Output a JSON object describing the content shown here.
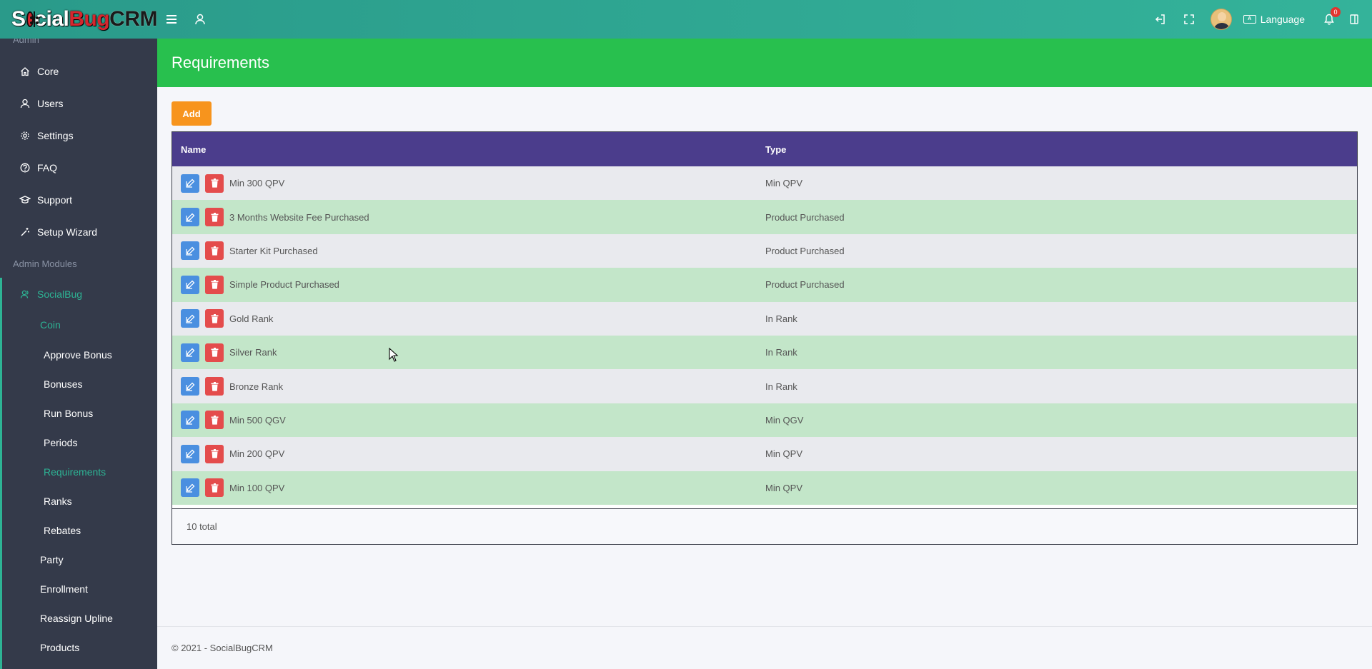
{
  "brand": {
    "logo_prefix": "S",
    "logo_mid": "cial",
    "logo_bug": "Bug",
    "logo_suffix": "CRM"
  },
  "topbar": {
    "language_label": "Language",
    "notification_count": "0"
  },
  "sidebar": {
    "section_admin": "Admin",
    "items": [
      {
        "label": "Core",
        "icon": "home-icon"
      },
      {
        "label": "Users",
        "icon": "user-icon"
      },
      {
        "label": "Settings",
        "icon": "gear-icon"
      },
      {
        "label": "FAQ",
        "icon": "question-icon"
      },
      {
        "label": "Support",
        "icon": "graduation-cap-icon"
      },
      {
        "label": "Setup Wizard",
        "icon": "magic-wand-icon"
      }
    ],
    "section_modules": "Admin Modules",
    "module": {
      "label": "SocialBug",
      "icon": "user-group-icon"
    },
    "coin": "Coin",
    "coin_items": [
      "Approve Bonus",
      "Bonuses",
      "Run Bonus",
      "Periods",
      "Requirements",
      "Ranks",
      "Rebates"
    ],
    "other_items": [
      "Party",
      "Enrollment",
      "Reassign Upline",
      "Products"
    ],
    "active_item": "Requirements",
    "accent_color": "#2db394"
  },
  "page": {
    "title": "Requirements",
    "add_label": "Add"
  },
  "table": {
    "columns": [
      "Name",
      "Type"
    ],
    "rows": [
      {
        "name": "Min 300 QPV",
        "type": "Min QPV"
      },
      {
        "name": "3 Months Website Fee Purchased",
        "type": "Product Purchased"
      },
      {
        "name": "Starter Kit Purchased",
        "type": "Product Purchased"
      },
      {
        "name": "Simple Product Purchased",
        "type": "Product Purchased"
      },
      {
        "name": "Gold Rank",
        "type": "In Rank"
      },
      {
        "name": "Silver Rank",
        "type": "In Rank"
      },
      {
        "name": "Bronze Rank",
        "type": "In Rank"
      },
      {
        "name": "Min 500 QGV",
        "type": "Min QGV"
      },
      {
        "name": "Min 200 QPV",
        "type": "Min QPV"
      },
      {
        "name": "Min 100 QPV",
        "type": "Min QPV"
      }
    ],
    "total_label": "10 total"
  },
  "footer": {
    "copyright": "© 2021 - SocialBugCRM"
  },
  "colors": {
    "header_green": "#28c04e",
    "table_header": "#4b3d8c",
    "add_button": "#f7941d",
    "edit_button": "#4a8fe0",
    "delete_button": "#e44c4c"
  }
}
